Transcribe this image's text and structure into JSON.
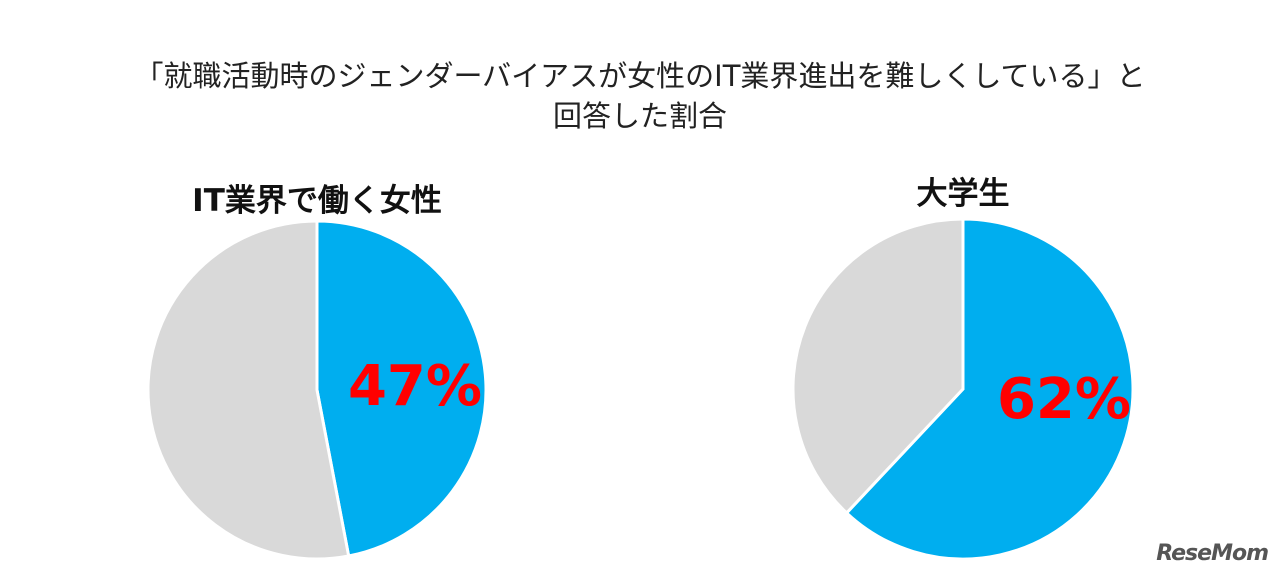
{
  "title_lines": [
    "「就職活動時のジェンダーバイアスが女性のIT業界進出を難しくしている」と",
    "回答した割合"
  ],
  "colors": {
    "highlight": "#00AEEF",
    "rest": "#D9D9D9",
    "label": "#FF0000"
  },
  "watermark": "ReseMom",
  "chart_data": [
    {
      "type": "pie",
      "title": "IT業界で働く女性",
      "slices": [
        {
          "value": 47,
          "label": "47%",
          "color": "#00AEEF"
        },
        {
          "value": 53,
          "label": "",
          "color": "#D9D9D9"
        }
      ]
    },
    {
      "type": "pie",
      "title": "大学生",
      "slices": [
        {
          "value": 62,
          "label": "62%",
          "color": "#00AEEF"
        },
        {
          "value": 38,
          "label": "",
          "color": "#D9D9D9"
        }
      ]
    }
  ]
}
